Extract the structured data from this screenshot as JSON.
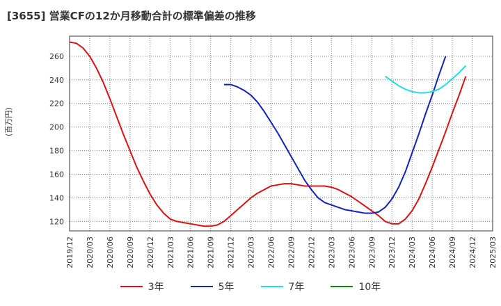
{
  "header": {
    "title": "[3655]  営業CFの12か月移動合計の標準偏差の推移"
  },
  "chart_data": {
    "type": "line",
    "title": "[3655]  営業CFの12か月移動合計の標準偏差の推移",
    "ylabel": "(百万円)",
    "xlabel": "",
    "ylim": [
      112,
      277
    ],
    "yticks": [
      120,
      140,
      160,
      180,
      200,
      220,
      240,
      260
    ],
    "x_ticks": [
      "2019/12",
      "2020/03",
      "2020/06",
      "2020/09",
      "2020/12",
      "2021/03",
      "2021/06",
      "2021/09",
      "2021/12",
      "2022/03",
      "2022/06",
      "2022/09",
      "2022/12",
      "2023/03",
      "2023/06",
      "2023/09",
      "2023/12",
      "2024/03",
      "2024/06",
      "2024/09",
      "2024/12",
      "2025/03"
    ],
    "grid": true,
    "legend": "bottom",
    "series": [
      {
        "name": "3年",
        "color": "#dd1111",
        "start": "2019/12",
        "values": [
          272,
          271,
          267,
          260,
          250,
          238,
          224,
          209,
          194,
          180,
          166,
          154,
          143,
          134,
          127,
          122,
          120,
          119,
          118,
          117,
          116,
          116,
          117,
          120,
          125,
          130,
          135,
          140,
          144,
          147,
          150,
          151,
          152,
          152,
          151,
          150,
          150,
          150,
          150,
          149,
          147,
          144,
          141,
          137,
          133,
          129,
          125,
          120,
          118,
          118,
          122,
          129,
          139,
          152,
          166,
          181,
          196,
          212,
          227,
          243
        ]
      },
      {
        "name": "5年",
        "color": "#1122bb",
        "start": "2021/11",
        "values": [
          236,
          236,
          234,
          231,
          227,
          221,
          213,
          204,
          195,
          185,
          175,
          165,
          155,
          147,
          140,
          136,
          134,
          132,
          130,
          129,
          128,
          127,
          127,
          128,
          132,
          139,
          149,
          162,
          178,
          194,
          211,
          227,
          244,
          260
        ]
      },
      {
        "name": "7年",
        "color": "#22dddd",
        "start": "2023/11",
        "values": [
          243,
          239,
          235,
          232,
          230,
          229,
          229,
          230,
          232,
          236,
          241,
          246,
          252
        ]
      },
      {
        "name": "10年",
        "color": "#118811",
        "start": "",
        "values": []
      }
    ]
  }
}
